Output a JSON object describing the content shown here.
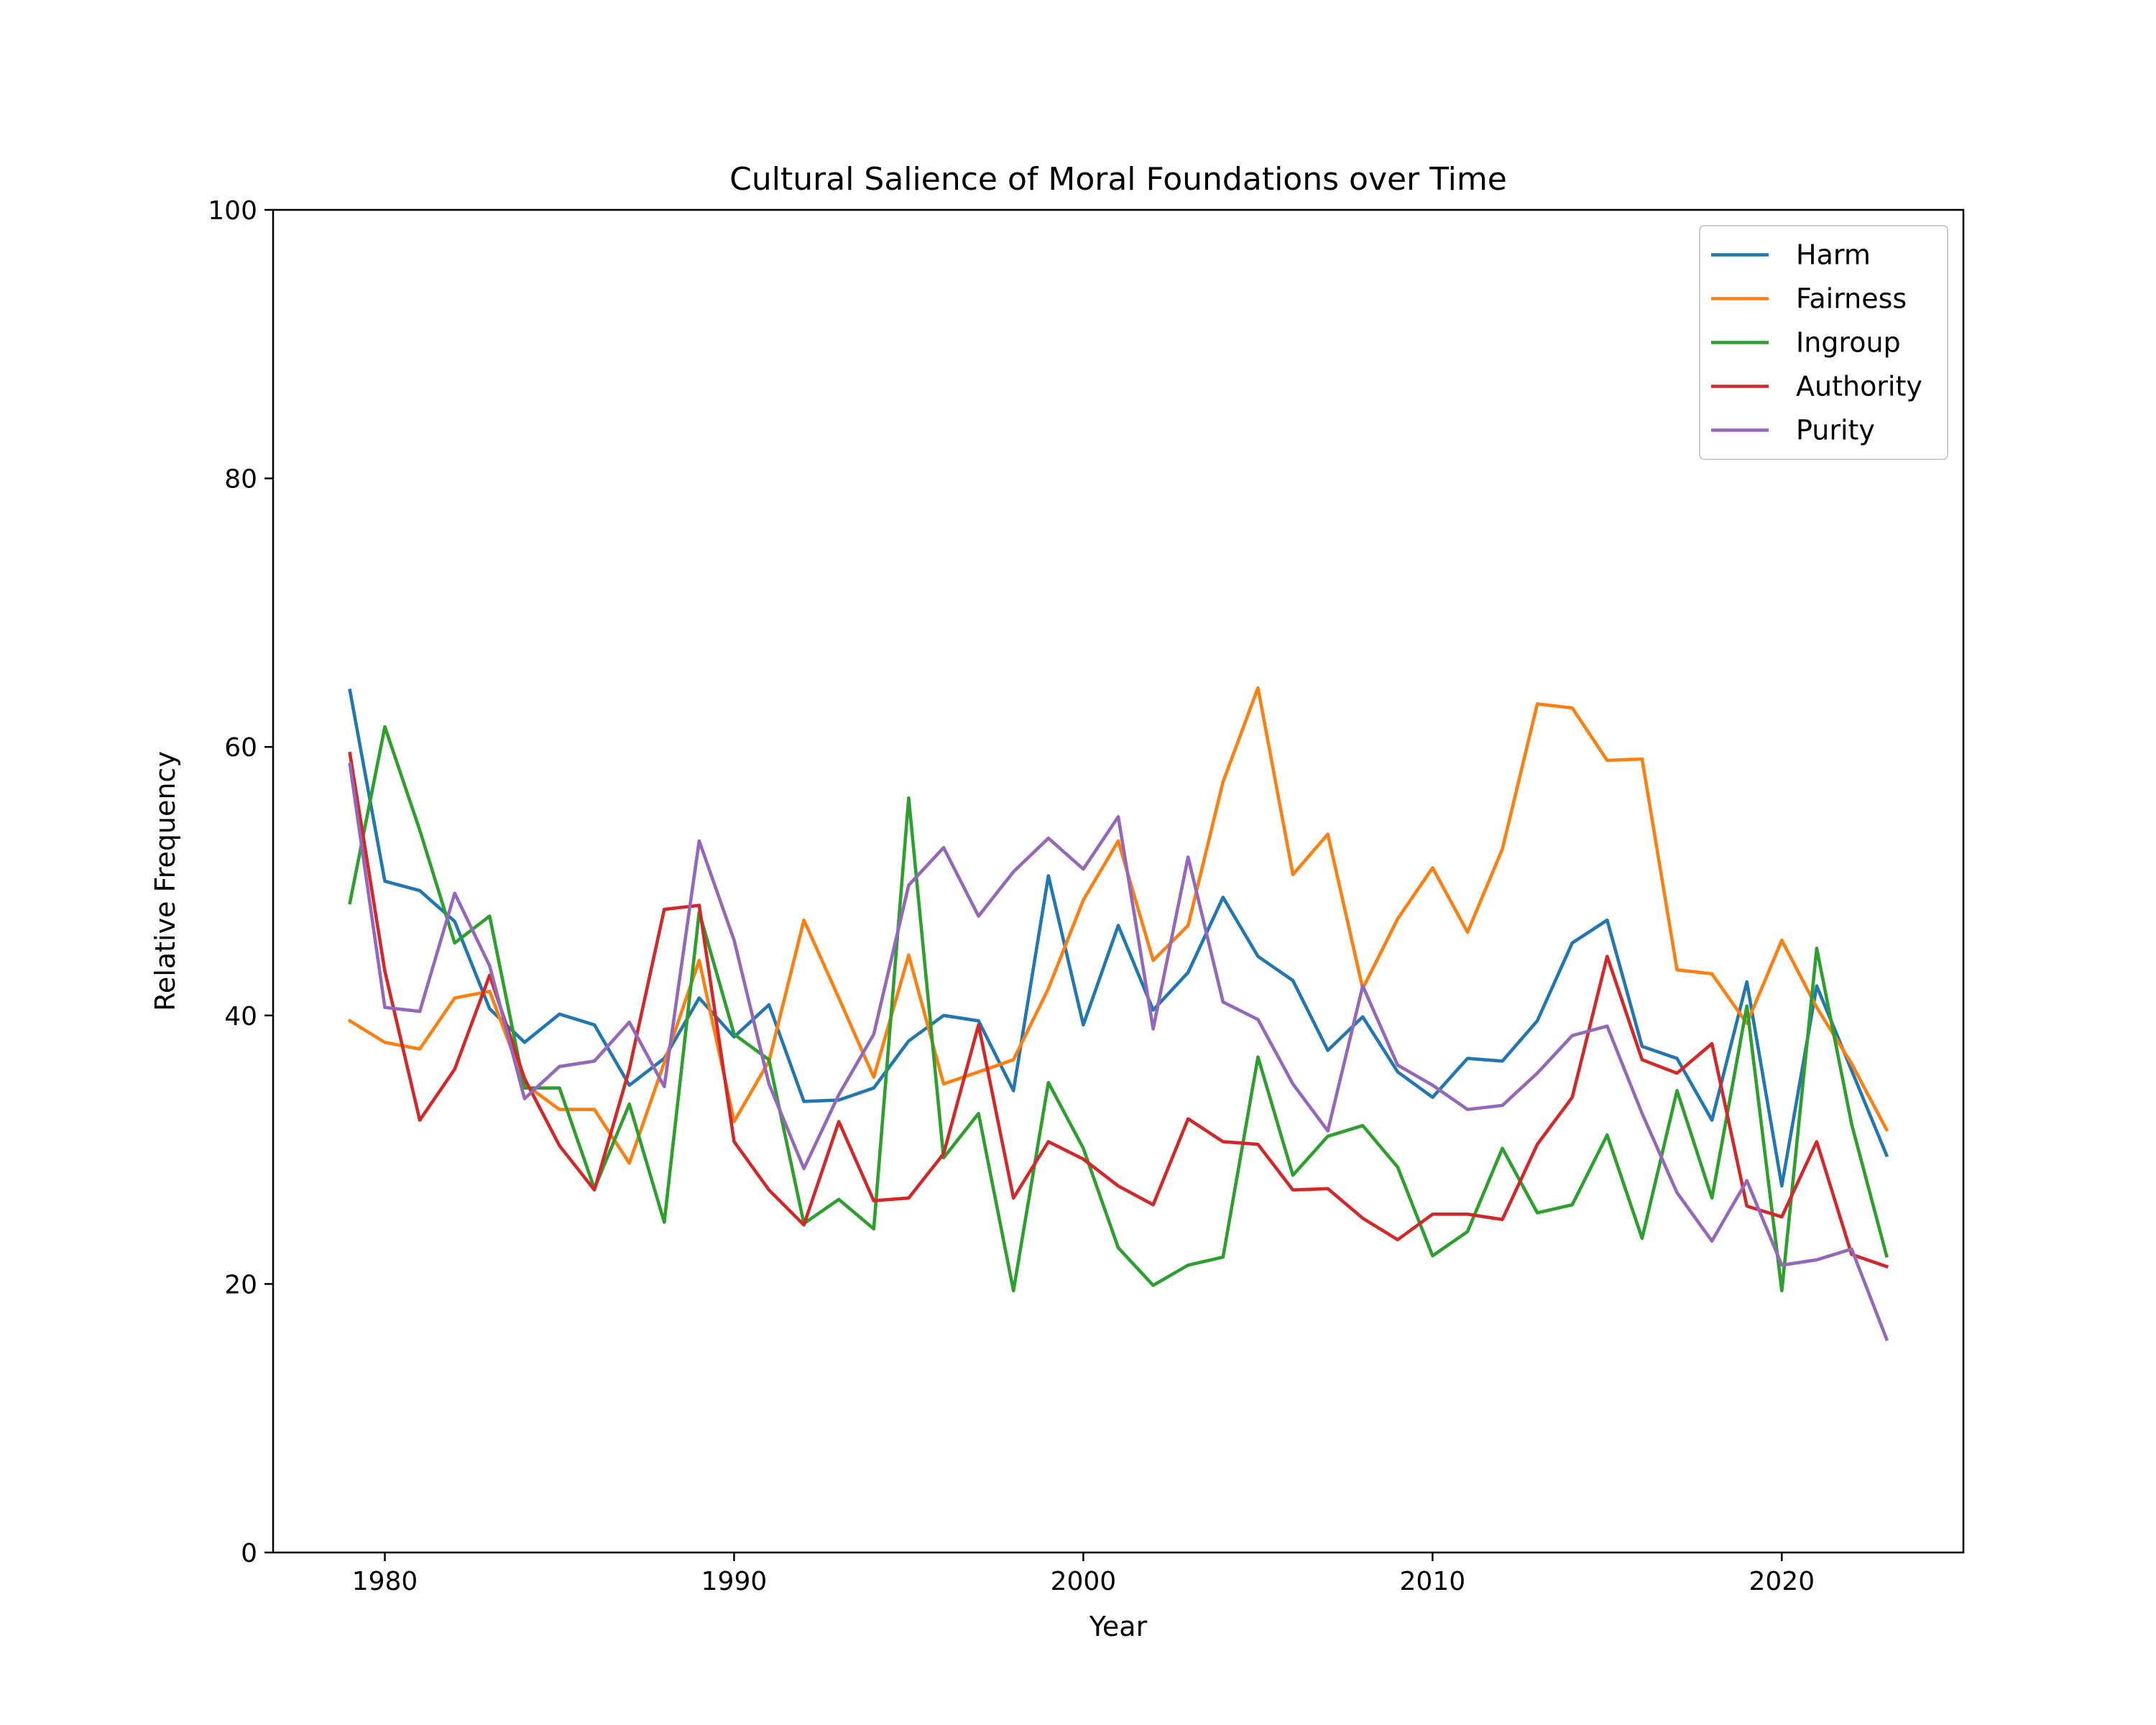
{
  "chart_data": {
    "type": "line",
    "title": "Cultural Salience of Moral Foundations over Time",
    "xlabel": "Year",
    "ylabel": "Relative Frequency",
    "xlim": [
      1976.8,
      2025.2
    ],
    "ylim": [
      0,
      100
    ],
    "xticks": [
      1980,
      1990,
      2000,
      2010,
      2020
    ],
    "yticks": [
      0,
      20,
      40,
      60,
      80,
      100
    ],
    "grid": false,
    "legend_position": "top-right",
    "x": [
      1979,
      1980,
      1981,
      1982,
      1983,
      1984,
      1985,
      1986,
      1987,
      1988,
      1989,
      1990,
      1991,
      1992,
      1993,
      1994,
      1995,
      1996,
      1997,
      1998,
      1999,
      2000,
      2001,
      2002,
      2003,
      2004,
      2005,
      2006,
      2007,
      2008,
      2009,
      2010,
      2011,
      2012,
      2013,
      2014,
      2015,
      2016,
      2017,
      2018,
      2019,
      2020,
      2021,
      2022,
      2023
    ],
    "series": [
      {
        "name": "Harm",
        "color": "#1f77b4",
        "values": [
          64.2,
          50.0,
          49.3,
          47.0,
          40.5,
          38.0,
          40.1,
          39.3,
          34.8,
          36.8,
          41.3,
          38.4,
          40.8,
          33.6,
          33.7,
          34.6,
          38.1,
          40.0,
          39.6,
          34.4,
          50.4,
          39.3,
          46.7,
          40.4,
          43.2,
          48.8,
          44.4,
          42.6,
          37.4,
          39.9,
          35.8,
          33.9,
          36.8,
          36.6,
          39.6,
          45.4,
          47.1,
          37.7,
          36.8,
          32.2,
          42.5,
          27.3,
          42.2,
          35.9,
          29.6
        ]
      },
      {
        "name": "Fairness",
        "color": "#ff7f0e",
        "values": [
          39.6,
          38.0,
          37.5,
          41.3,
          41.8,
          34.9,
          33.0,
          33.0,
          29.0,
          36.5,
          44.1,
          32.1,
          36.6,
          47.1,
          41.3,
          35.4,
          44.5,
          34.9,
          35.8,
          36.7,
          42.0,
          48.6,
          53.0,
          44.1,
          46.7,
          57.4,
          64.4,
          50.5,
          53.5,
          42.0,
          47.2,
          51.0,
          46.2,
          52.4,
          63.2,
          62.9,
          59.0,
          59.1,
          43.4,
          43.1,
          39.4,
          45.6,
          40.6,
          36.4,
          31.5
        ]
      },
      {
        "name": "Ingroup",
        "color": "#2ca02c",
        "values": [
          48.4,
          61.5,
          53.8,
          45.4,
          47.4,
          34.6,
          34.6,
          27.1,
          33.4,
          24.6,
          47.7,
          38.6,
          36.7,
          24.5,
          26.3,
          24.1,
          56.2,
          29.4,
          32.7,
          19.5,
          35.0,
          30.1,
          22.7,
          19.9,
          21.4,
          22.0,
          36.9,
          28.1,
          31.0,
          31.8,
          28.7,
          22.1,
          23.9,
          30.1,
          25.3,
          25.9,
          31.1,
          23.4,
          34.4,
          26.4,
          40.7,
          19.5,
          45.0,
          31.9,
          22.1
        ]
      },
      {
        "name": "Authority",
        "color": "#d62728",
        "values": [
          59.5,
          43.3,
          32.2,
          36.0,
          43.0,
          35.3,
          30.3,
          27.0,
          36.0,
          47.9,
          48.2,
          30.6,
          27.0,
          24.4,
          32.1,
          26.2,
          26.4,
          29.7,
          39.3,
          26.4,
          30.6,
          29.3,
          27.3,
          25.9,
          32.3,
          30.6,
          30.4,
          27.0,
          27.1,
          24.9,
          23.3,
          25.2,
          25.2,
          24.8,
          30.4,
          33.9,
          44.4,
          36.7,
          35.7,
          37.9,
          25.8,
          25.0,
          30.6,
          22.2,
          21.3
        ]
      },
      {
        "name": "Purity",
        "color": "#9467bd",
        "values": [
          58.7,
          40.6,
          40.3,
          49.1,
          43.7,
          33.8,
          36.2,
          36.6,
          39.5,
          34.7,
          53.0,
          45.6,
          34.9,
          28.6,
          34.1,
          38.6,
          49.7,
          52.5,
          47.4,
          50.7,
          53.2,
          50.9,
          54.8,
          39.0,
          51.8,
          41.0,
          39.7,
          34.9,
          31.4,
          42.2,
          36.3,
          34.8,
          33.0,
          33.3,
          35.7,
          38.5,
          39.2,
          32.7,
          26.8,
          23.2,
          27.7,
          21.4,
          21.8,
          22.6,
          15.9
        ]
      }
    ]
  }
}
